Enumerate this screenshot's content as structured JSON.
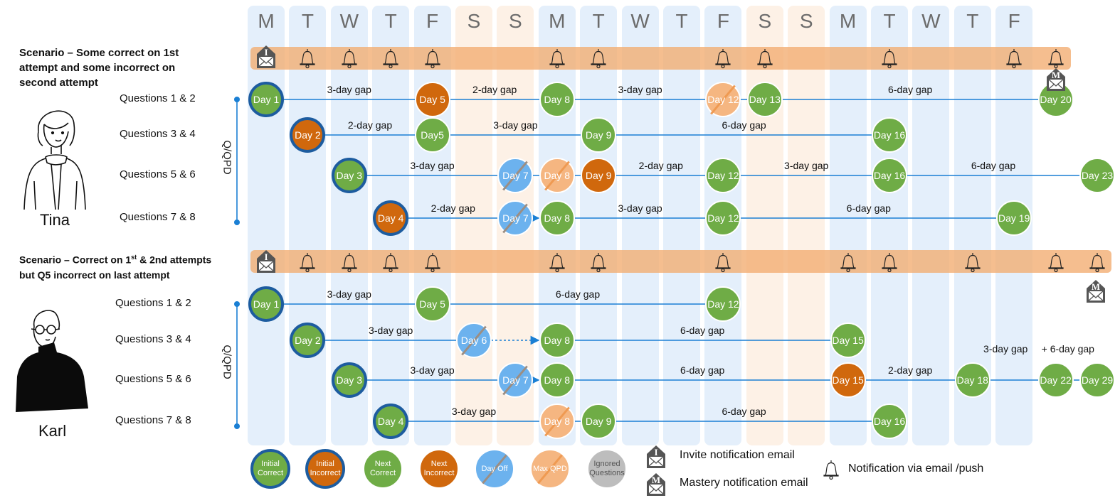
{
  "weekdays": [
    "M",
    "T",
    "W",
    "T",
    "F",
    "S",
    "S",
    "M",
    "T",
    "W",
    "T",
    "F",
    "S",
    "S",
    "M",
    "T",
    "W",
    "T",
    "F"
  ],
  "colors": {
    "initial_correct": "#6fac46",
    "incorrect": "#d0680d",
    "day_off": "#6cb2ee",
    "max_qpd": "#f5b681",
    "ignored": "#bdbdbd",
    "ring": "#1d5c9f",
    "line": "#1a7fd4",
    "band": "#f2ac70"
  },
  "axis_label": "Q/QPD",
  "scenarios": [
    {
      "person": "Tina",
      "title_lines": [
        "Scenario – Some correct on 1st",
        "attempt and some incorrect on",
        "second attempt"
      ],
      "rows": [
        {
          "label": "Questions 1 & 2",
          "nodes": [
            {
              "label": "Day 1",
              "type": "ic"
            },
            {
              "label": "Day 5",
              "type": "ni"
            },
            {
              "label": "Day 8",
              "type": "nc"
            },
            {
              "label": "Day 12",
              "type": "max"
            },
            {
              "label": "Day 13",
              "type": "nc"
            },
            {
              "label": "Day 20",
              "type": "nc"
            }
          ],
          "gaps": [
            {
              "after": 0,
              "label": "3-day gap"
            },
            {
              "after": 1,
              "label": "2-day gap"
            },
            {
              "after": 2,
              "label": "3-day gap"
            },
            {
              "after": 4,
              "label": "6-day gap"
            }
          ]
        },
        {
          "label": "Questions 3 & 4",
          "nodes": [
            {
              "label": "Day 2",
              "type": "ii"
            },
            {
              "label": "Day5",
              "type": "nc"
            },
            {
              "label": "Day 9",
              "type": "nc"
            },
            {
              "label": "Day 16",
              "type": "nc"
            }
          ],
          "gaps": [
            {
              "after": 0,
              "label": "2-day gap"
            },
            {
              "after": 1,
              "label": "3-day gap"
            },
            {
              "after": 2,
              "label": "6-day gap"
            }
          ]
        },
        {
          "label": "Questions 5 & 6",
          "nodes": [
            {
              "label": "Day 3",
              "type": "ic"
            },
            {
              "label": "Day 7",
              "type": "off"
            },
            {
              "label": "Day 8",
              "type": "max"
            },
            {
              "label": "Day 9",
              "type": "ni"
            },
            {
              "label": "Day 12",
              "type": "nc"
            },
            {
              "label": "Day 16",
              "type": "nc"
            },
            {
              "label": "Day 23",
              "type": "nc"
            }
          ],
          "gaps": [
            {
              "after": 0,
              "label": "3-day gap"
            },
            {
              "after": 3,
              "label": "2-day gap"
            },
            {
              "after": 4,
              "label": "3-day gap"
            },
            {
              "after": 5,
              "label": "6-day gap"
            }
          ]
        },
        {
          "label": "Questions 7 & 8",
          "nodes": [
            {
              "label": "Day 4",
              "type": "ii"
            },
            {
              "label": "Day 7",
              "type": "off"
            },
            {
              "label": "Day 8",
              "type": "nc"
            },
            {
              "label": "Day 12",
              "type": "nc"
            },
            {
              "label": "Day 19",
              "type": "nc"
            }
          ],
          "gaps": [
            {
              "after": 0,
              "label": "2-day gap"
            },
            {
              "after": 2,
              "label": "3-day gap"
            },
            {
              "after": 3,
              "label": "6-day gap"
            }
          ]
        }
      ]
    },
    {
      "person": "Karl",
      "title_lines": [
        "Scenario – Correct on 1",
        "st",
        " & 2nd attempts",
        "but Q5 incorrect on last attempt"
      ],
      "rows": [
        {
          "label": "Questions 1 & 2",
          "nodes": [
            {
              "label": "Day 1",
              "type": "ic"
            },
            {
              "label": "Day 5",
              "type": "nc"
            },
            {
              "label": "Day 12",
              "type": "nc"
            }
          ],
          "gaps": [
            {
              "after": 0,
              "label": "3-day gap"
            },
            {
              "after": 1,
              "label": "6-day gap"
            }
          ]
        },
        {
          "label": "Questions 3 & 4",
          "nodes": [
            {
              "label": "Day 2",
              "type": "ic"
            },
            {
              "label": "Day 6",
              "type": "off"
            },
            {
              "label": "Day 8",
              "type": "nc"
            },
            {
              "label": "Day 15",
              "type": "nc"
            }
          ],
          "gaps": [
            {
              "after": 0,
              "label": "3-day gap"
            },
            {
              "after": 2,
              "label": "6-day gap"
            }
          ]
        },
        {
          "label": "Questions 5 & 6",
          "nodes": [
            {
              "label": "Day 3",
              "type": "ic"
            },
            {
              "label": "Day 7",
              "type": "off"
            },
            {
              "label": "Day 8",
              "type": "nc"
            },
            {
              "label": "Day 15",
              "type": "ni"
            },
            {
              "label": "Day 18",
              "type": "nc"
            },
            {
              "label": "Day 22",
              "type": "nc"
            },
            {
              "label": "Day 29",
              "type": "nc"
            }
          ],
          "gaps": [
            {
              "after": 0,
              "label": "3-day gap"
            },
            {
              "after": 2,
              "label": "6-day gap"
            },
            {
              "after": 3,
              "label": "2-day gap"
            },
            {
              "after": 4,
              "label": "3-day gap",
              "raised": true
            },
            {
              "after": 5,
              "label": "+ 6-day gap",
              "raised": true
            }
          ]
        },
        {
          "label": "Questions 7 & 8",
          "nodes": [
            {
              "label": "Day 4",
              "type": "ic"
            },
            {
              "label": "Day 8",
              "type": "max"
            },
            {
              "label": "Day 9",
              "type": "nc"
            },
            {
              "label": "Day 16",
              "type": "nc"
            }
          ],
          "gaps": [
            {
              "after": 0,
              "label": "3-day gap"
            },
            {
              "after": 2,
              "label": "6-day gap"
            }
          ]
        }
      ]
    }
  ],
  "legend": {
    "circles": [
      {
        "label": "Initial Correct",
        "type": "ic"
      },
      {
        "label": "Initial Incorrect",
        "type": "ii"
      },
      {
        "label": "Next Correct",
        "type": "nc"
      },
      {
        "label": "Next Incorrect",
        "type": "ni"
      },
      {
        "label": "Day Off",
        "type": "off"
      },
      {
        "label": "Max QPD",
        "type": "max"
      },
      {
        "label": "Ignored Questions",
        "type": "ign"
      }
    ],
    "invite_letter": "I",
    "mastery_letter": "M",
    "invite_text": "Invite notification email",
    "mastery_text": "Mastery notification email",
    "bell_text": "Notification via email /push"
  }
}
